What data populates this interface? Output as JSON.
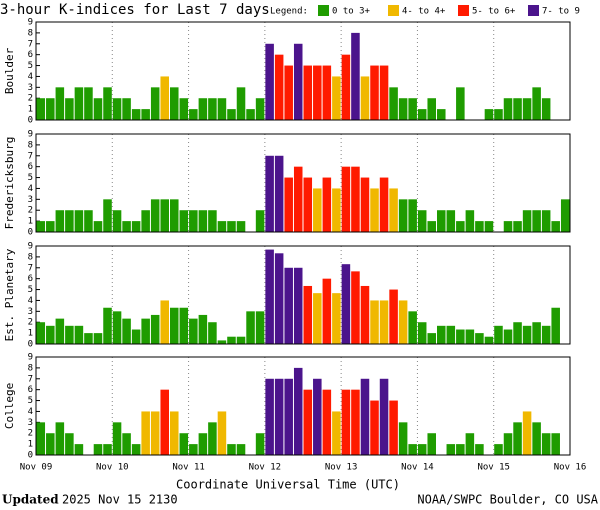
{
  "chart_data": [
    {
      "type": "bar",
      "title": "3-hour K-indices for Last 7 days",
      "legend_title": "Legend:",
      "legend": [
        {
          "label": "0 to 3+",
          "color": "#1f9c00"
        },
        {
          "label": "4- to 4+",
          "color": "#f0b800"
        },
        {
          "label": "5- to 6+",
          "color": "#ff1a00"
        },
        {
          "label": "7- to 9",
          "color": "#4b148c"
        }
      ],
      "ylabel": "Boulder",
      "ylim": [
        0,
        9
      ],
      "yticks": [
        0,
        1,
        2,
        3,
        4,
        5,
        6,
        7,
        8,
        9
      ],
      "values": [
        2,
        2,
        3,
        2,
        3,
        3,
        2,
        3,
        2,
        2,
        1,
        1,
        3,
        4,
        3,
        2,
        1,
        2,
        2,
        2,
        1,
        3,
        1,
        2,
        7,
        6,
        5,
        7,
        5,
        5,
        5,
        4,
        6,
        8,
        4,
        5,
        5,
        3,
        2,
        2,
        1,
        2,
        1,
        0,
        3,
        0,
        0,
        1,
        1,
        2,
        2,
        2,
        3,
        2,
        0,
        0
      ]
    },
    {
      "type": "bar",
      "ylabel": "Fredericksburg",
      "ylim": [
        0,
        9
      ],
      "yticks": [
        0,
        1,
        2,
        3,
        4,
        5,
        6,
        7,
        8,
        9
      ],
      "values": [
        1,
        1,
        2,
        2,
        2,
        2,
        1,
        3,
        2,
        1,
        1,
        2,
        3,
        3,
        3,
        2,
        2,
        2,
        2,
        1,
        1,
        1,
        0,
        2,
        7,
        7,
        5,
        6,
        5,
        4,
        5,
        4,
        6,
        6,
        5,
        4,
        5,
        4,
        3,
        3,
        2,
        1,
        2,
        2,
        1,
        2,
        1,
        1,
        0,
        1,
        1,
        2,
        2,
        2,
        1,
        3
      ]
    },
    {
      "type": "bar",
      "ylabel": "Est. Planetary",
      "ylim": [
        0,
        9
      ],
      "yticks": [
        0,
        1,
        2,
        3,
        4,
        5,
        6,
        7,
        8,
        9
      ],
      "values": [
        2,
        1.67,
        2.33,
        1.67,
        1.67,
        1,
        1,
        3.33,
        3,
        2.33,
        1.33,
        2.33,
        2.67,
        4,
        3.33,
        3.33,
        2.33,
        2.67,
        2,
        0.33,
        0.67,
        0.67,
        3,
        3,
        8.67,
        8.33,
        7,
        7,
        5.33,
        4.67,
        6,
        4.67,
        7.33,
        6.67,
        5.33,
        4,
        4,
        5,
        4,
        3,
        2,
        1,
        1.67,
        1.67,
        1.33,
        1.33,
        1,
        0.67,
        1.67,
        1.33,
        2,
        1.67,
        2,
        1.67,
        3.33,
        0
      ]
    },
    {
      "type": "bar",
      "ylabel": "College",
      "ylim": [
        0,
        9
      ],
      "yticks": [
        0,
        1,
        2,
        3,
        4,
        5,
        6,
        7,
        8,
        9
      ],
      "values": [
        3,
        2,
        3,
        2,
        1,
        0,
        1,
        1,
        3,
        2,
        1,
        4,
        4,
        6,
        4,
        2,
        1,
        2,
        3,
        4,
        1,
        1,
        0,
        2,
        7,
        7,
        7,
        8,
        6,
        7,
        6,
        4,
        6,
        6,
        7,
        5,
        7,
        5,
        3,
        1,
        1,
        2,
        0,
        1,
        1,
        2,
        1,
        0,
        1,
        2,
        3,
        4,
        3,
        2,
        2,
        0
      ],
      "x_labels": [
        "Nov 09",
        "Nov 10",
        "Nov 11",
        "Nov 12",
        "Nov 13",
        "Nov 14",
        "Nov 15",
        "Nov 16"
      ],
      "xlabel": "Coordinate Universal Time (UTC)"
    }
  ],
  "footer": {
    "updated_label": "Updated",
    "updated": "2025 Nov 15 2130",
    "credit": "NOAA/SWPC Boulder, CO USA"
  }
}
